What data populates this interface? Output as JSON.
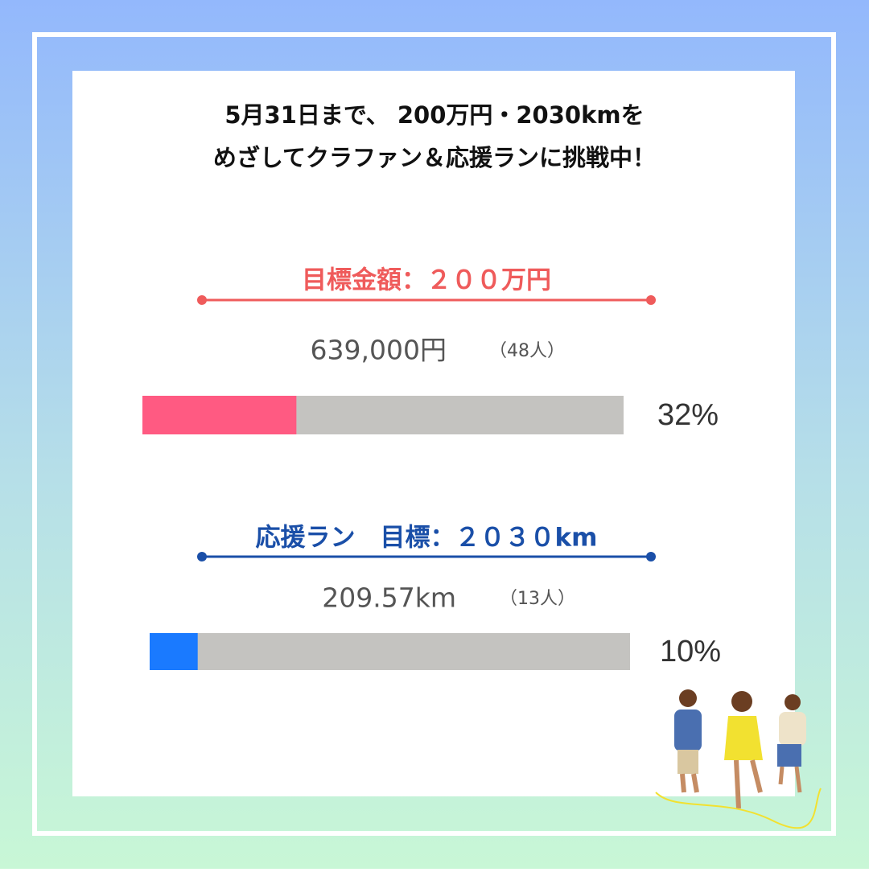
{
  "title": {
    "lines": [
      "5月31日まで、 200万円・2030kmを",
      "めざしてクラファン＆応援ランに挑戦中！"
    ]
  },
  "sections": [
    {
      "heading": "目標金額：２００万円",
      "amount": "639,000円",
      "count": "（48人）",
      "progress": {
        "value": 32,
        "label": "32%"
      },
      "range": [
        0,
        100
      ],
      "bar_color": "#ff5a82"
    },
    {
      "heading": "応援ラン　目標：２０３０km",
      "amount": "209.57km",
      "count": "（13人）",
      "progress": {
        "value": 10,
        "label": "10%"
      },
      "range": [
        0,
        100
      ],
      "bar_color": "#1a7aff"
    }
  ]
}
